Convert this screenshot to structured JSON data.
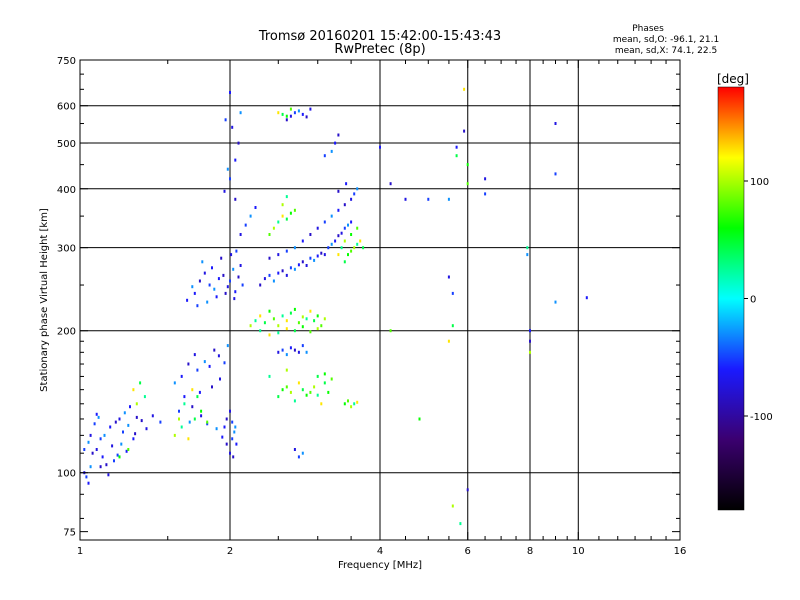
{
  "chart_data": {
    "type": "scatter",
    "title": "Tromsø 20160201 15:42:00-15:43:43",
    "subtitle": "RwPretec (8p)",
    "xlabel": "Frequency [MHz]",
    "ylabel": "Stationary phase Virtual Height [km]",
    "xscale": "log",
    "yscale": "log",
    "xlim": [
      1,
      16
    ],
    "ylim": [
      72,
      750
    ],
    "x_ticks": [
      1,
      2,
      4,
      6,
      8,
      10,
      16
    ],
    "x_tick_labels": [
      "1",
      "2",
      "4",
      "6",
      "8",
      "10",
      "16"
    ],
    "x_minor_ticks": [
      1.5,
      2.5,
      3,
      3.5,
      4.5,
      5,
      5.5,
      6.5,
      7,
      7.5,
      8.5,
      9,
      9.5,
      11,
      12,
      13,
      14,
      15
    ],
    "x_gridlines": [
      2,
      4,
      6,
      8,
      10
    ],
    "y_ticks": [
      75,
      100,
      200,
      300,
      400,
      500,
      600,
      750
    ],
    "y_tick_labels": [
      "75",
      "100",
      "200",
      "300",
      "400",
      "500",
      "600",
      "750"
    ],
    "y_gridlines": [
      100,
      200,
      300,
      400,
      500,
      600
    ],
    "y_minor_ticks": [
      80,
      90,
      110,
      120,
      130,
      140,
      150,
      160,
      170,
      180,
      190,
      250,
      350,
      450,
      550,
      650,
      700
    ],
    "grid": true,
    "info": {
      "heading": "Phases",
      "line1": "mean, sd,O: -96.1, 21.1",
      "line2": "mean, sd,X:  74.1, 22.5"
    },
    "colorbar": {
      "label": "[deg]",
      "range": [
        -180,
        180
      ],
      "ticks": [
        100,
        0,
        -100
      ],
      "tick_labels": [
        "100",
        "0",
        "-100"
      ],
      "colormap": [
        "#000000",
        "#3b0070",
        "#1a1aff",
        "#00ffff",
        "#00ff00",
        "#ffff00",
        "#ff0000"
      ]
    },
    "series": [
      {
        "points": [
          [
            1.02,
            100
          ],
          [
            1.03,
            98
          ],
          [
            1.05,
            103
          ],
          [
            1.04,
            95
          ],
          [
            1.06,
            110
          ],
          [
            1.08,
            112
          ],
          [
            1.1,
            118
          ],
          [
            1.12,
            120
          ],
          [
            1.15,
            125
          ],
          [
            1.18,
            128
          ],
          [
            1.2,
            130
          ],
          [
            1.22,
            122
          ],
          [
            1.25,
            126
          ],
          [
            1.28,
            118
          ],
          [
            1.3,
            131
          ],
          [
            1.05,
            120
          ],
          [
            1.07,
            127
          ],
          [
            1.09,
            131
          ],
          [
            1.11,
            108
          ],
          [
            1.13,
            104
          ],
          [
            1.16,
            114
          ],
          [
            1.19,
            109
          ],
          [
            1.23,
            134
          ],
          [
            1.26,
            138
          ],
          [
            1.33,
            129
          ],
          [
            1.36,
            124
          ],
          [
            1.02,
            112
          ],
          [
            1.04,
            116
          ],
          [
            1.08,
            133
          ],
          [
            1.1,
            103
          ],
          [
            1.14,
            99
          ],
          [
            1.17,
            106
          ],
          [
            1.21,
            115
          ],
          [
            1.24,
            111
          ],
          [
            1.29,
            121
          ],
          [
            1.4,
            132
          ],
          [
            1.45,
            128
          ],
          [
            1.55,
            155
          ],
          [
            1.6,
            160
          ],
          [
            1.65,
            170
          ],
          [
            1.7,
            178
          ],
          [
            1.72,
            165
          ],
          [
            1.78,
            172
          ],
          [
            1.82,
            168
          ],
          [
            1.86,
            182
          ],
          [
            1.9,
            177
          ],
          [
            1.95,
            171
          ],
          [
            1.98,
            186
          ],
          [
            1.62,
            145
          ],
          [
            1.68,
            138
          ],
          [
            1.75,
            132
          ],
          [
            1.8,
            127
          ],
          [
            1.88,
            124
          ],
          [
            1.93,
            119
          ],
          [
            1.97,
            115
          ],
          [
            2.0,
            110
          ],
          [
            2.02,
            118
          ],
          [
            2.05,
            125
          ],
          [
            1.74,
            148
          ],
          [
            1.84,
            152
          ],
          [
            1.91,
            158
          ],
          [
            1.58,
            135
          ],
          [
            1.66,
            128
          ],
          [
            1.7,
            240
          ],
          [
            1.74,
            255
          ],
          [
            1.78,
            265
          ],
          [
            1.82,
            250
          ],
          [
            1.86,
            245
          ],
          [
            1.9,
            258
          ],
          [
            1.94,
            262
          ],
          [
            1.98,
            248
          ],
          [
            2.0,
            255
          ],
          [
            2.03,
            270
          ],
          [
            2.05,
            242
          ],
          [
            2.08,
            260
          ],
          [
            2.1,
            275
          ],
          [
            2.12,
            250
          ],
          [
            1.76,
            280
          ],
          [
            1.84,
            272
          ],
          [
            1.92,
            285
          ],
          [
            2.01,
            290
          ],
          [
            2.06,
            295
          ],
          [
            1.8,
            230
          ],
          [
            1.88,
            236
          ],
          [
            1.96,
            240
          ],
          [
            2.04,
            234
          ],
          [
            1.72,
            226
          ],
          [
            1.68,
            248
          ],
          [
            1.64,
            232
          ],
          [
            2.3,
            250
          ],
          [
            2.35,
            258
          ],
          [
            2.4,
            262
          ],
          [
            2.45,
            255
          ],
          [
            2.5,
            265
          ],
          [
            2.55,
            268
          ],
          [
            2.6,
            262
          ],
          [
            2.65,
            272
          ],
          [
            2.7,
            270
          ],
          [
            2.75,
            276
          ],
          [
            2.8,
            280
          ],
          [
            2.85,
            275
          ],
          [
            2.9,
            285
          ],
          [
            2.95,
            282
          ],
          [
            3.0,
            288
          ],
          [
            3.05,
            292
          ],
          [
            3.1,
            290
          ],
          [
            3.15,
            300
          ],
          [
            3.2,
            305
          ],
          [
            3.25,
            310
          ],
          [
            3.3,
            318
          ],
          [
            3.35,
            322
          ],
          [
            3.4,
            330
          ],
          [
            3.45,
            335
          ],
          [
            3.5,
            340
          ],
          [
            2.4,
            285
          ],
          [
            2.5,
            290
          ],
          [
            2.6,
            295
          ],
          [
            2.7,
            300
          ],
          [
            2.8,
            310
          ],
          [
            2.9,
            320
          ],
          [
            3.0,
            330
          ],
          [
            3.1,
            340
          ],
          [
            3.2,
            350
          ],
          [
            3.3,
            360
          ],
          [
            3.4,
            370
          ],
          [
            3.5,
            380
          ],
          [
            3.55,
            390
          ],
          [
            3.6,
            400
          ],
          [
            3.42,
            410
          ],
          [
            3.3,
            395
          ],
          [
            2.1,
            320
          ],
          [
            2.15,
            335
          ],
          [
            2.2,
            350
          ],
          [
            2.25,
            365
          ],
          [
            2.05,
            380
          ],
          [
            1.95,
            395
          ],
          [
            2.0,
            420
          ],
          [
            1.98,
            440
          ],
          [
            2.05,
            460
          ],
          [
            2.08,
            500
          ],
          [
            2.02,
            540
          ],
          [
            1.96,
            560
          ],
          [
            2.1,
            580
          ],
          [
            2.0,
            640
          ],
          [
            2.6,
            560
          ],
          [
            2.65,
            570
          ],
          [
            2.7,
            580
          ],
          [
            2.75,
            585
          ],
          [
            2.8,
            575
          ],
          [
            2.85,
            568
          ],
          [
            2.9,
            590
          ],
          [
            3.1,
            470
          ],
          [
            3.2,
            480
          ],
          [
            3.25,
            500
          ],
          [
            3.3,
            520
          ],
          [
            2.5,
            180
          ],
          [
            2.55,
            182
          ],
          [
            2.6,
            178
          ],
          [
            2.65,
            184
          ],
          [
            2.7,
            182
          ],
          [
            2.75,
            180
          ],
          [
            2.8,
            186
          ],
          [
            2.85,
            180
          ],
          [
            1.95,
            125
          ],
          [
            1.97,
            130
          ],
          [
            2.0,
            135
          ],
          [
            2.02,
            128
          ],
          [
            2.04,
            122
          ],
          [
            2.06,
            115
          ],
          [
            2.03,
            108
          ],
          [
            2.7,
            112
          ],
          [
            2.75,
            108
          ],
          [
            2.8,
            110
          ],
          [
            4.0,
            490
          ],
          [
            4.2,
            410
          ],
          [
            4.5,
            380
          ],
          [
            5.0,
            380
          ],
          [
            5.5,
            380
          ],
          [
            5.7,
            490
          ],
          [
            5.9,
            530
          ],
          [
            6.5,
            420
          ],
          [
            6.5,
            390
          ],
          [
            7.9,
            290
          ],
          [
            8.0,
            200
          ],
          [
            8.0,
            190
          ],
          [
            9.0,
            550
          ],
          [
            9.0,
            430
          ],
          [
            9.0,
            230
          ],
          [
            10.4,
            235
          ],
          [
            6.0,
            92
          ],
          [
            5.5,
            260
          ],
          [
            5.6,
            240
          ]
        ]
      },
      {
        "points": [
          [
            2.2,
            205
          ],
          [
            2.25,
            210
          ],
          [
            2.3,
            215
          ],
          [
            2.35,
            208
          ],
          [
            2.4,
            220
          ],
          [
            2.45,
            212
          ],
          [
            2.5,
            205
          ],
          [
            2.55,
            215
          ],
          [
            2.6,
            210
          ],
          [
            2.65,
            218
          ],
          [
            2.7,
            222
          ],
          [
            2.75,
            208
          ],
          [
            2.8,
            214
          ],
          [
            2.85,
            212
          ],
          [
            2.9,
            220
          ],
          [
            2.95,
            210
          ],
          [
            3.0,
            215
          ],
          [
            3.05,
            205
          ],
          [
            3.1,
            212
          ],
          [
            2.5,
            198
          ],
          [
            2.6,
            202
          ],
          [
            2.7,
            200
          ],
          [
            2.8,
            204
          ],
          [
            2.9,
            199
          ],
          [
            3.0,
            202
          ],
          [
            2.3,
            200
          ],
          [
            2.4,
            196
          ],
          [
            3.4,
            280
          ],
          [
            3.45,
            290
          ],
          [
            3.5,
            295
          ],
          [
            3.55,
            300
          ],
          [
            3.6,
            305
          ],
          [
            3.65,
            310
          ],
          [
            3.7,
            300
          ],
          [
            3.5,
            320
          ],
          [
            3.6,
            330
          ],
          [
            3.4,
            310
          ],
          [
            3.35,
            300
          ],
          [
            3.3,
            290
          ],
          [
            2.5,
            145
          ],
          [
            2.55,
            150
          ],
          [
            2.6,
            152
          ],
          [
            2.65,
            148
          ],
          [
            2.7,
            142
          ],
          [
            2.75,
            155
          ],
          [
            2.8,
            150
          ],
          [
            2.85,
            146
          ],
          [
            2.9,
            148
          ],
          [
            2.95,
            152
          ],
          [
            3.0,
            146
          ],
          [
            3.05,
            140
          ],
          [
            3.1,
            155
          ],
          [
            3.15,
            148
          ],
          [
            2.4,
            320
          ],
          [
            2.45,
            330
          ],
          [
            2.5,
            340
          ],
          [
            2.55,
            350
          ],
          [
            2.6,
            345
          ],
          [
            2.65,
            355
          ],
          [
            2.7,
            360
          ],
          [
            2.55,
            370
          ],
          [
            2.6,
            385
          ],
          [
            2.5,
            580
          ],
          [
            2.55,
            575
          ],
          [
            2.6,
            570
          ],
          [
            2.65,
            590
          ],
          [
            1.55,
            120
          ],
          [
            1.6,
            125
          ],
          [
            1.65,
            118
          ],
          [
            1.7,
            130
          ],
          [
            1.75,
            135
          ],
          [
            1.8,
            128
          ],
          [
            1.58,
            130
          ],
          [
            1.62,
            140
          ],
          [
            1.68,
            150
          ],
          [
            1.72,
            145
          ],
          [
            1.2,
            108
          ],
          [
            1.25,
            112
          ],
          [
            1.3,
            140
          ],
          [
            1.35,
            145
          ],
          [
            1.28,
            150
          ],
          [
            1.32,
            155
          ],
          [
            3.4,
            140
          ],
          [
            3.45,
            142
          ],
          [
            3.5,
            138
          ],
          [
            3.55,
            140
          ],
          [
            3.6,
            141
          ],
          [
            3.0,
            160
          ],
          [
            3.1,
            162
          ],
          [
            3.2,
            158
          ],
          [
            2.6,
            165
          ],
          [
            2.4,
            160
          ],
          [
            5.5,
            190
          ],
          [
            5.6,
            205
          ],
          [
            6.0,
            450
          ],
          [
            6.0,
            410
          ],
          [
            5.6,
            85
          ],
          [
            5.8,
            78
          ],
          [
            5.9,
            650
          ],
          [
            5.7,
            470
          ],
          [
            4.8,
            130
          ],
          [
            4.2,
            200
          ],
          [
            8.0,
            180
          ],
          [
            7.9,
            300
          ]
        ]
      }
    ]
  }
}
